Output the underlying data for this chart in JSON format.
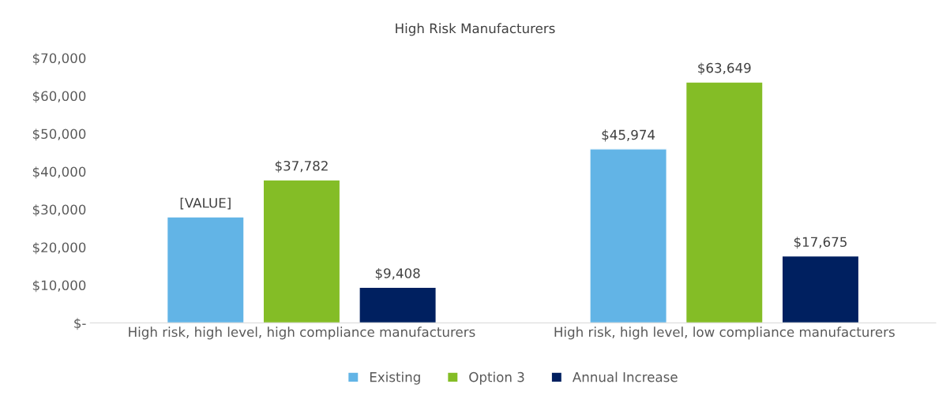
{
  "chart_data": {
    "type": "bar",
    "title": "High Risk Manufacturers",
    "categories": [
      "High risk, high level, high compliance manufacturers",
      "High risk, high level, low compliance manufacturers"
    ],
    "series": [
      {
        "name": "Existing",
        "color": "#62b4e6",
        "values": [
          28000,
          45974
        ],
        "value_labels": [
          "[VALUE]",
          "$45,974"
        ]
      },
      {
        "name": "Option 3",
        "color": "#84bd26",
        "values": [
          37782,
          63649
        ],
        "value_labels": [
          "$37,782",
          "$63,649"
        ]
      },
      {
        "name": "Annual Increase",
        "color": "#002060",
        "values": [
          9408,
          17675
        ],
        "value_labels": [
          "$9,408",
          "$17,675"
        ]
      }
    ],
    "ylim": [
      0,
      70000
    ],
    "yticks": [
      {
        "value": 0,
        "label": "$-"
      },
      {
        "value": 10000,
        "label": "$10,000"
      },
      {
        "value": 20000,
        "label": "$20,000"
      },
      {
        "value": 30000,
        "label": "$30,000"
      },
      {
        "value": 40000,
        "label": "$40,000"
      },
      {
        "value": 50000,
        "label": "$50,000"
      },
      {
        "value": 60000,
        "label": "$60,000"
      },
      {
        "value": 70000,
        "label": "$70,000"
      }
    ],
    "grid": false,
    "legend": "bottom"
  }
}
